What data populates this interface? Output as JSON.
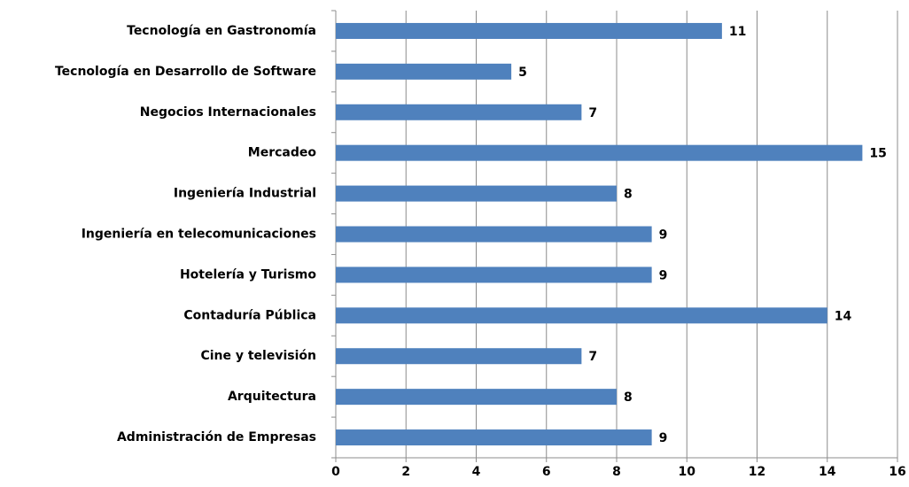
{
  "chart_data": {
    "type": "bar",
    "orientation": "horizontal",
    "categories": [
      "Tecnología en Gastronomía",
      "Tecnología en Desarrollo de Software",
      "Negocios Internacionales",
      "Mercadeo",
      "Ingeniería Industrial",
      "Ingeniería en telecomunicaciones",
      "Hotelería y Turismo",
      "Contaduría Pública",
      "Cine y televisión",
      "Arquitectura",
      "Administración de Empresas"
    ],
    "values": [
      11,
      5,
      7,
      15,
      8,
      9,
      9,
      14,
      7,
      8,
      9
    ],
    "color": "#4f81bd",
    "xlim": [
      0,
      16
    ],
    "xticks": [
      0,
      2,
      4,
      6,
      8,
      10,
      12,
      14,
      16
    ],
    "grid": true
  }
}
